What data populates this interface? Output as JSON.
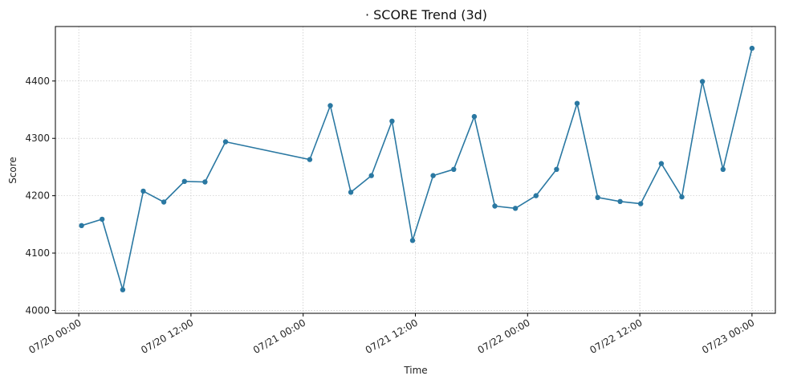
{
  "chart_data": {
    "type": "line",
    "title": "· SCORE Trend (3d)",
    "xlabel": "Time",
    "ylabel": "Score",
    "ylim": [
      3995,
      4495
    ],
    "xlim": [
      "2020-07-19T21:30",
      "2020-07-23T02:30"
    ],
    "grid": true,
    "color": "#2a78a2",
    "x_ticks": [
      {
        "t": "2020-07-20T00:00",
        "label": "07/20 00:00"
      },
      {
        "t": "2020-07-20T12:00",
        "label": "07/20 12:00"
      },
      {
        "t": "2020-07-21T00:00",
        "label": "07/21 00:00"
      },
      {
        "t": "2020-07-21T12:00",
        "label": "07/21 12:00"
      },
      {
        "t": "2020-07-22T00:00",
        "label": "07/22 00:00"
      },
      {
        "t": "2020-07-22T12:00",
        "label": "07/22 12:00"
      },
      {
        "t": "2020-07-23T00:00",
        "label": "07/23 00:00"
      }
    ],
    "y_ticks": [
      4000,
      4100,
      4200,
      4300,
      4400
    ],
    "series": [
      {
        "points": [
          {
            "t": "2020-07-20T00:18",
            "y": 4148
          },
          {
            "t": "2020-07-20T02:30",
            "y": 4159
          },
          {
            "t": "2020-07-20T04:42",
            "y": 4036
          },
          {
            "t": "2020-07-20T06:54",
            "y": 4208
          },
          {
            "t": "2020-07-20T09:06",
            "y": 4189
          },
          {
            "t": "2020-07-20T11:18",
            "y": 4225
          },
          {
            "t": "2020-07-20T13:30",
            "y": 4224
          },
          {
            "t": "2020-07-20T15:42",
            "y": 4294
          },
          {
            "t": "2020-07-21T00:42",
            "y": 4263
          },
          {
            "t": "2020-07-21T02:54",
            "y": 4357
          },
          {
            "t": "2020-07-21T05:06",
            "y": 4206
          },
          {
            "t": "2020-07-21T07:18",
            "y": 4235
          },
          {
            "t": "2020-07-21T09:30",
            "y": 4330
          },
          {
            "t": "2020-07-21T11:42",
            "y": 4122
          },
          {
            "t": "2020-07-21T13:54",
            "y": 4235
          },
          {
            "t": "2020-07-21T16:06",
            "y": 4246
          },
          {
            "t": "2020-07-21T18:18",
            "y": 4338
          },
          {
            "t": "2020-07-21T20:30",
            "y": 4182
          },
          {
            "t": "2020-07-21T22:42",
            "y": 4178
          },
          {
            "t": "2020-07-22T00:54",
            "y": 4200
          },
          {
            "t": "2020-07-22T03:06",
            "y": 4246
          },
          {
            "t": "2020-07-22T05:18",
            "y": 4361
          },
          {
            "t": "2020-07-22T07:30",
            "y": 4197
          },
          {
            "t": "2020-07-22T09:54",
            "y": 4190
          },
          {
            "t": "2020-07-22T12:06",
            "y": 4186
          },
          {
            "t": "2020-07-22T14:18",
            "y": 4256
          },
          {
            "t": "2020-07-22T16:30",
            "y": 4198
          },
          {
            "t": "2020-07-22T18:42",
            "y": 4399
          },
          {
            "t": "2020-07-22T20:54",
            "y": 4246
          },
          {
            "t": "2020-07-23T00:00",
            "y": 4457
          }
        ]
      }
    ]
  }
}
